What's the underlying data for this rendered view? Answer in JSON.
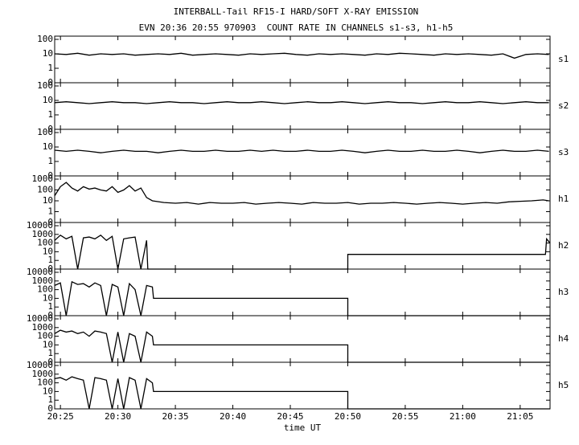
{
  "chart_data": [
    {
      "type": "line",
      "title": "INTERBALL-Tail RF15-I HARD/SOFT X-RAY EMISSION",
      "subtitle": "EVN 20:36 20:55 970903  COUNT RATE IN CHANNELS s1-s3, h1-h5",
      "label": "s1",
      "yscale": "log",
      "ylim": [
        0,
        100
      ],
      "yticks": [
        0,
        1,
        10,
        100
      ],
      "color": "#000000",
      "x": [
        24.5,
        25.5,
        26.5,
        27.5,
        28.5,
        29.5,
        30.5,
        31.5,
        32.5,
        33.5,
        34.5,
        35.5,
        36.5,
        37.5,
        38.5,
        39.5,
        40.5,
        41.5,
        42.5,
        43.5,
        44.5,
        45.5,
        46.5,
        47.5,
        48.5,
        49.5,
        50.5,
        51.5,
        52.5,
        53.5,
        54.5,
        55.5,
        56.5,
        57.5,
        58.5,
        59.5,
        60.5,
        61.5,
        62.5,
        63.5,
        64.5,
        65.5,
        66.5,
        67.5
      ],
      "values": [
        10,
        9,
        11,
        8,
        10,
        9,
        10,
        8,
        9,
        10,
        9,
        11,
        8,
        9,
        10,
        9,
        8,
        10,
        9,
        10,
        11,
        9,
        8,
        10,
        9,
        10,
        9,
        8,
        10,
        9,
        11,
        10,
        9,
        8,
        10,
        9,
        10,
        9,
        8,
        10,
        5,
        9,
        10,
        9
      ]
    },
    {
      "type": "line",
      "label": "s2",
      "yscale": "log",
      "ylim": [
        0,
        100
      ],
      "yticks": [
        0,
        1,
        10,
        100
      ],
      "color": "#000000",
      "x": [
        24.5,
        25.5,
        26.5,
        27.5,
        28.5,
        29.5,
        30.5,
        31.5,
        32.5,
        33.5,
        34.5,
        35.5,
        36.5,
        37.5,
        38.5,
        39.5,
        40.5,
        41.5,
        42.5,
        43.5,
        44.5,
        45.5,
        46.5,
        47.5,
        48.5,
        49.5,
        50.5,
        51.5,
        52.5,
        53.5,
        54.5,
        55.5,
        56.5,
        57.5,
        58.5,
        59.5,
        60.5,
        61.5,
        62.5,
        63.5,
        64.5,
        65.5,
        66.5,
        67.5
      ],
      "values": [
        7,
        8,
        7,
        6,
        7,
        8,
        7,
        7,
        6,
        7,
        8,
        7,
        7,
        6,
        7,
        8,
        7,
        7,
        8,
        7,
        6,
        7,
        8,
        7,
        7,
        8,
        7,
        6,
        7,
        8,
        7,
        7,
        6,
        7,
        8,
        7,
        7,
        8,
        7,
        6,
        7,
        8,
        7,
        7
      ]
    },
    {
      "type": "line",
      "label": "s3",
      "yscale": "log",
      "ylim": [
        0,
        100
      ],
      "yticks": [
        0,
        1,
        10,
        100
      ],
      "color": "#000000",
      "x": [
        24.5,
        25.5,
        26.5,
        27.5,
        28.5,
        29.5,
        30.5,
        31.5,
        32.5,
        33.5,
        34.5,
        35.5,
        36.5,
        37.5,
        38.5,
        39.5,
        40.5,
        41.5,
        42.5,
        43.5,
        44.5,
        45.5,
        46.5,
        47.5,
        48.5,
        49.5,
        50.5,
        51.5,
        52.5,
        53.5,
        54.5,
        55.5,
        56.5,
        57.5,
        58.5,
        59.5,
        60.5,
        61.5,
        62.5,
        63.5,
        64.5,
        65.5,
        66.5,
        67.5
      ],
      "values": [
        6,
        5,
        6,
        5,
        4,
        5,
        6,
        5,
        5,
        4,
        5,
        6,
        5,
        5,
        6,
        5,
        5,
        6,
        5,
        6,
        5,
        5,
        6,
        5,
        5,
        6,
        5,
        4,
        5,
        6,
        5,
        5,
        6,
        5,
        5,
        6,
        5,
        4,
        5,
        6,
        5,
        5,
        6,
        5
      ]
    },
    {
      "type": "line",
      "label": "h1",
      "yscale": "log",
      "ylim": [
        0,
        1000
      ],
      "yticks": [
        0,
        1,
        10,
        100,
        1000
      ],
      "color": "#000000",
      "x": [
        24.5,
        25,
        25.5,
        26,
        26.5,
        27,
        27.5,
        28,
        28.5,
        29,
        29.5,
        30,
        30.5,
        31,
        31.5,
        32,
        32.5,
        33,
        34,
        35,
        36,
        37,
        38,
        39,
        40,
        41,
        42,
        43,
        44,
        45,
        46,
        47,
        48,
        49,
        50,
        51,
        52,
        53,
        54,
        55,
        56,
        57,
        58,
        59,
        60,
        61,
        62,
        63,
        64,
        65,
        66,
        67,
        67.5
      ],
      "values": [
        30,
        200,
        500,
        150,
        80,
        200,
        120,
        150,
        100,
        80,
        200,
        60,
        100,
        250,
        80,
        150,
        20,
        10,
        7,
        6,
        7,
        5,
        7,
        6,
        6,
        7,
        5,
        6,
        7,
        6,
        5,
        7,
        6,
        6,
        7,
        5,
        6,
        6,
        7,
        6,
        5,
        6,
        7,
        6,
        5,
        6,
        7,
        6,
        8,
        9,
        10,
        12,
        10
      ]
    },
    {
      "type": "line",
      "label": "h2",
      "yscale": "log",
      "ylim": [
        0,
        10000
      ],
      "yticks": [
        0,
        1,
        10,
        100,
        1000,
        10000
      ],
      "color": "#000000",
      "x": [
        24.5,
        25,
        25.5,
        26,
        26.5,
        27,
        27.5,
        28,
        28.5,
        29,
        29.5,
        30,
        30.5,
        31,
        31.5,
        32,
        32.5,
        32.6,
        50,
        50,
        67.2,
        67.3,
        67.6
      ],
      "values": [
        200,
        800,
        300,
        600,
        0,
        400,
        500,
        300,
        800,
        200,
        600,
        0,
        300,
        400,
        500,
        0,
        200,
        0,
        0,
        5,
        5,
        300,
        100
      ]
    },
    {
      "type": "line",
      "label": "h3",
      "yscale": "log",
      "ylim": [
        0,
        10000
      ],
      "yticks": [
        0,
        1,
        10,
        100,
        1000,
        10000
      ],
      "color": "#000000",
      "x": [
        24.5,
        25,
        25.5,
        26,
        26.5,
        27,
        27.5,
        28,
        28.5,
        29,
        29.5,
        30,
        30.5,
        31,
        31.5,
        32,
        32.5,
        33,
        33.1,
        50,
        50,
        67.6
      ],
      "values": [
        300,
        600,
        0,
        800,
        400,
        500,
        200,
        600,
        300,
        0,
        400,
        200,
        0,
        500,
        100,
        0,
        300,
        200,
        10,
        10,
        0,
        0
      ]
    },
    {
      "type": "line",
      "label": "h4",
      "yscale": "log",
      "ylim": [
        0,
        10000
      ],
      "yticks": [
        0,
        1,
        10,
        100,
        1000,
        10000
      ],
      "color": "#000000",
      "x": [
        24.5,
        25,
        25.5,
        26,
        26.5,
        27,
        27.5,
        28,
        28.5,
        29,
        29.5,
        30,
        30.5,
        31,
        31.5,
        32,
        32.5,
        33,
        33.1,
        50,
        50,
        67.6
      ],
      "values": [
        200,
        500,
        300,
        400,
        200,
        300,
        100,
        400,
        300,
        200,
        0,
        300,
        0,
        200,
        100,
        0,
        300,
        100,
        10,
        10,
        0,
        0
      ]
    },
    {
      "type": "line",
      "label": "h5",
      "yscale": "log",
      "ylim": [
        0,
        10000
      ],
      "yticks": [
        0,
        1,
        10,
        100,
        1000,
        10000
      ],
      "color": "#000000",
      "x": [
        24.5,
        25,
        25.5,
        26,
        26.5,
        27,
        27.5,
        28,
        28.5,
        29,
        29.5,
        30,
        30.5,
        31,
        31.5,
        32,
        32.5,
        33,
        33.1,
        50,
        50,
        67.6
      ],
      "values": [
        300,
        400,
        200,
        500,
        300,
        200,
        0,
        400,
        300,
        200,
        0,
        300,
        0,
        400,
        200,
        0,
        300,
        100,
        10,
        10,
        0,
        0
      ],
      "xlabel": "time UT",
      "xlim": [
        24.5,
        67.6
      ],
      "xticks": [
        {
          "value": 25,
          "label": "20:25"
        },
        {
          "value": 30,
          "label": "20:30"
        },
        {
          "value": 35,
          "label": "20:35"
        },
        {
          "value": 40,
          "label": "20:40"
        },
        {
          "value": 45,
          "label": "20:45"
        },
        {
          "value": 50,
          "label": "20:50"
        },
        {
          "value": 55,
          "label": "20:55"
        },
        {
          "value": 60,
          "label": "21:00"
        },
        {
          "value": 65,
          "label": "21:05"
        }
      ]
    }
  ]
}
